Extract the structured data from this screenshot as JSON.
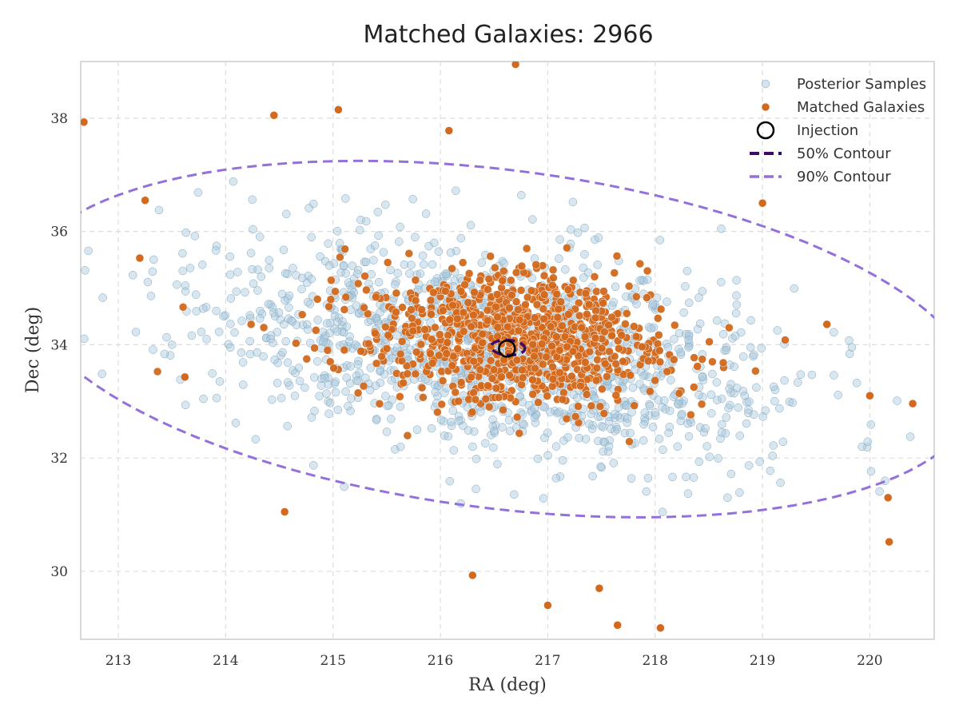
{
  "chart_data": {
    "type": "scatter",
    "title": "Matched Galaxies: 2966",
    "xlabel": "RA (deg)",
    "ylabel": "Dec (deg)",
    "xlim": [
      212.65,
      220.6
    ],
    "ylim": [
      28.8,
      39.0
    ],
    "x_ticks": [
      "213",
      "214",
      "215",
      "216",
      "217",
      "218",
      "219",
      "220"
    ],
    "x_tick_values": [
      213,
      214,
      215,
      216,
      217,
      218,
      219,
      220
    ],
    "y_ticks": [
      "30",
      "32",
      "34",
      "36",
      "38"
    ],
    "y_tick_values": [
      30,
      32,
      34,
      36,
      38
    ],
    "grid": true,
    "legend_position": "top-right",
    "legend": [
      {
        "label": "Posterior Samples",
        "kind": "marker"
      },
      {
        "label": "Matched Galaxies",
        "kind": "marker"
      },
      {
        "label": "Injection",
        "kind": "ring"
      },
      {
        "label": "50% Contour",
        "kind": "dash"
      },
      {
        "label": "90% Contour",
        "kind": "dash"
      }
    ],
    "injection": {
      "ra": 216.62,
      "dec": 33.93
    },
    "series": [
      {
        "name": "Posterior Samples",
        "color": "#a9c8dc",
        "distribution": {
          "center": [
            216.55,
            33.9
          ],
          "std_along_axis": [
            1.45,
            0.85
          ],
          "axis_angle_deg": -25,
          "n_drawn": 1400
        }
      },
      {
        "name": "Matched Galaxies",
        "color": "#d2691e",
        "distribution": {
          "center": [
            216.7,
            34.1
          ],
          "std_along_axis": [
            0.75,
            0.6
          ],
          "axis_angle_deg": -20,
          "n_drawn": 900
        },
        "points": [
          {
            "ra": 212.68,
            "dec": 37.93
          },
          {
            "ra": 214.45,
            "dec": 38.05
          },
          {
            "ra": 215.05,
            "dec": 38.15
          },
          {
            "ra": 216.08,
            "dec": 37.78
          },
          {
            "ra": 216.7,
            "dec": 38.95
          },
          {
            "ra": 219.0,
            "dec": 36.5
          },
          {
            "ra": 219.6,
            "dec": 34.36
          },
          {
            "ra": 220.4,
            "dec": 32.96
          },
          {
            "ra": 220.18,
            "dec": 30.52
          },
          {
            "ra": 217.0,
            "dec": 29.4
          },
          {
            "ra": 217.65,
            "dec": 29.05
          },
          {
            "ra": 218.05,
            "dec": 29.0
          },
          {
            "ra": 216.3,
            "dec": 29.93
          },
          {
            "ra": 214.55,
            "dec": 31.05
          },
          {
            "ra": 213.25,
            "dec": 36.55
          },
          {
            "ra": 213.2,
            "dec": 35.53
          },
          {
            "ra": 213.62,
            "dec": 33.43
          },
          {
            "ra": 217.48,
            "dec": 29.7
          },
          {
            "ra": 220.17,
            "dec": 31.3
          },
          {
            "ra": 220.0,
            "dec": 33.1
          }
        ]
      }
    ],
    "contours": [
      {
        "name": "50% Contour",
        "color": "#3d0a6b",
        "center": [
          216.63,
          33.95
        ],
        "semi_axes": [
          0.16,
          0.13
        ],
        "angle_deg": -18
      },
      {
        "name": "90% Contour",
        "color": "#9370db",
        "center": [
          216.55,
          34.1
        ],
        "semi_axes": [
          4.6,
          2.9
        ],
        "angle_deg": -20
      }
    ]
  }
}
